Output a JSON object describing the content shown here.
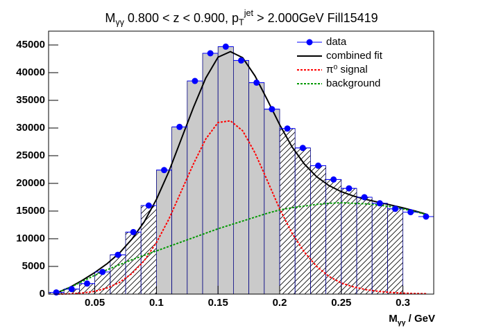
{
  "chart_data": {
    "type": "histfit",
    "title": [
      {
        "text": "M"
      },
      {
        "sub": "γγ"
      },
      {
        "text": " 0.800 < z < 0.900, p"
      },
      {
        "sub": "T"
      },
      {
        "sup": "jet"
      },
      {
        "text": " > 2.000GeV Fill15419"
      }
    ],
    "x_label": [
      {
        "text": "M"
      },
      {
        "sub": "γγ"
      },
      {
        "text": " / GeV"
      }
    ],
    "xlim": [
      0.0125,
      0.325
    ],
    "ylim": [
      0,
      47500
    ],
    "xticks": [
      0.05,
      0.1,
      0.15,
      0.2,
      0.25,
      0.3
    ],
    "yticks": [
      0,
      5000,
      10000,
      15000,
      20000,
      25000,
      30000,
      35000,
      40000,
      45000
    ],
    "legend": "top-right",
    "histogram": {
      "bins": [
        0.0125,
        0.025,
        0.0375,
        0.05,
        0.0625,
        0.075,
        0.0875,
        0.1,
        0.1125,
        0.125,
        0.1375,
        0.15,
        0.1625,
        0.175,
        0.1875,
        0.2,
        0.2125,
        0.225,
        0.2375,
        0.25,
        0.2625,
        0.275,
        0.2875,
        0.3
      ],
      "counts": [
        300,
        900,
        1900,
        4000,
        7100,
        11200,
        16000,
        22400,
        30200,
        38500,
        43500,
        44700,
        42200,
        38200,
        33400,
        29900,
        26400,
        23200,
        20700,
        19100,
        17500,
        16400,
        15400
      ],
      "fill_range": [
        0.1,
        0.2
      ],
      "fill_color": "#cacaca"
    },
    "data": {
      "name": "data",
      "color": "#0000ff",
      "x": [
        0.01875,
        0.03125,
        0.04375,
        0.05625,
        0.06875,
        0.08125,
        0.09375,
        0.10625,
        0.11875,
        0.13125,
        0.14375,
        0.15625,
        0.16875,
        0.18125,
        0.19375,
        0.20625,
        0.21875,
        0.23125,
        0.24375,
        0.25625,
        0.26875,
        0.28125,
        0.29375,
        0.30625,
        0.31875
      ],
      "values": [
        300,
        900,
        1900,
        4000,
        7100,
        11200,
        16000,
        22400,
        30200,
        38500,
        43500,
        44700,
        42200,
        38200,
        33400,
        29900,
        26400,
        23200,
        20700,
        19100,
        17500,
        16400,
        15400,
        14800,
        14000
      ]
    },
    "curves_x": [
      0.02,
      0.03,
      0.04,
      0.05,
      0.06,
      0.07,
      0.08,
      0.09,
      0.1,
      0.11,
      0.12,
      0.13,
      0.14,
      0.15,
      0.16,
      0.17,
      0.18,
      0.19,
      0.2,
      0.21,
      0.22,
      0.23,
      0.24,
      0.25,
      0.26,
      0.27,
      0.28,
      0.29,
      0.3,
      0.31,
      0.32
    ],
    "series": [
      {
        "name": "combined fit",
        "color": "#000000",
        "dash": false,
        "values": [
          300,
          1250,
          2500,
          3900,
          5500,
          7400,
          9900,
          13000,
          17100,
          22100,
          27900,
          33700,
          39000,
          42800,
          43800,
          42700,
          39400,
          35100,
          30600,
          26600,
          23500,
          21200,
          19600,
          18500,
          17700,
          17100,
          16600,
          16100,
          15580,
          15000,
          14360
        ]
      },
      {
        "name": "π⁰ signal",
        "color": "#ff0000",
        "dash": true,
        "values": [
          0,
          50,
          200,
          500,
          1100,
          2100,
          3700,
          6000,
          9300,
          13500,
          18500,
          23500,
          28000,
          31000,
          31300,
          29500,
          25500,
          20500,
          15400,
          11000,
          7600,
          5000,
          3200,
          2000,
          1300,
          800,
          500,
          300,
          180,
          100,
          60
        ]
      },
      {
        "name": "background",
        "color": "#009900",
        "dash": true,
        "values": [
          300,
          1200,
          2300,
          3400,
          4400,
          5300,
          6200,
          7000,
          7800,
          8600,
          9400,
          10200,
          11000,
          11800,
          12500,
          13200,
          13900,
          14600,
          15200,
          15600,
          15900,
          16200,
          16400,
          16500,
          16400,
          16300,
          16100,
          15800,
          15400,
          14900,
          14300
        ]
      }
    ]
  }
}
